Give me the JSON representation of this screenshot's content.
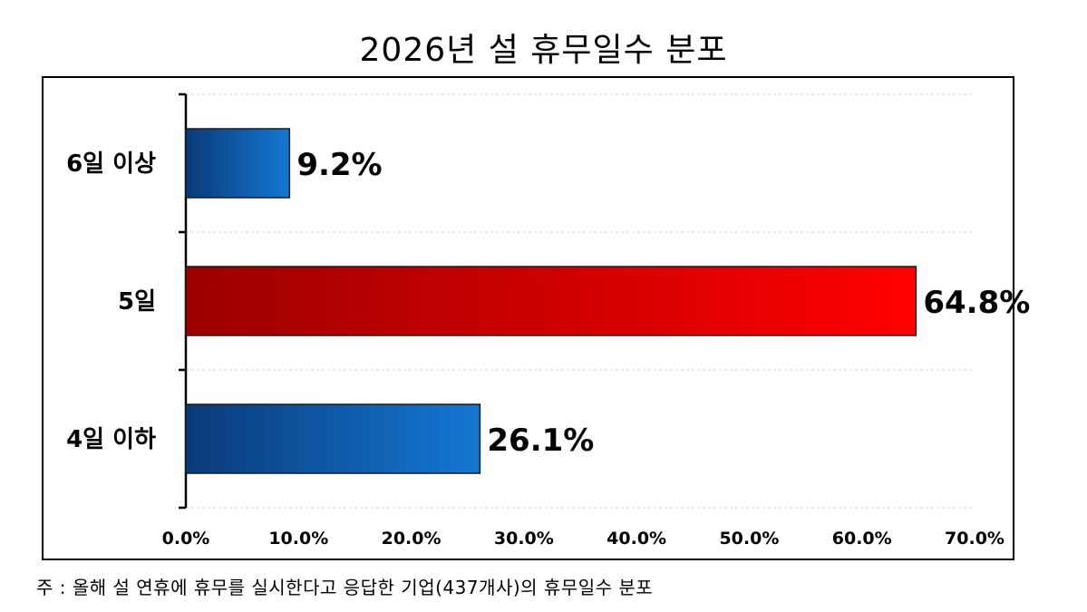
{
  "chart_data": {
    "type": "bar",
    "orientation": "horizontal",
    "title": "2026년 설 휴무일수 분포",
    "categories": [
      "6일 이상",
      "5일",
      "4일 이하"
    ],
    "values": [
      9.2,
      64.8,
      26.1
    ],
    "value_labels": [
      "9.2%",
      "64.8%",
      "26.1%"
    ],
    "xlim": [
      0,
      70
    ],
    "x_ticks": [
      "0.0%",
      "10.0%",
      "20.0%",
      "30.0%",
      "40.0%",
      "50.0%",
      "60.0%",
      "70.0%"
    ],
    "grid": true,
    "colors": {
      "default_bar": [
        "#0a3a78",
        "#1478d4"
      ],
      "highlight_bar": [
        "#9c0000",
        "#ff0000"
      ]
    },
    "highlight_index": 1
  },
  "footnote": "주 : 올해 설 연휴에 휴무를 실시한다고 응답한 기업(437개사)의 휴무일수 분포"
}
